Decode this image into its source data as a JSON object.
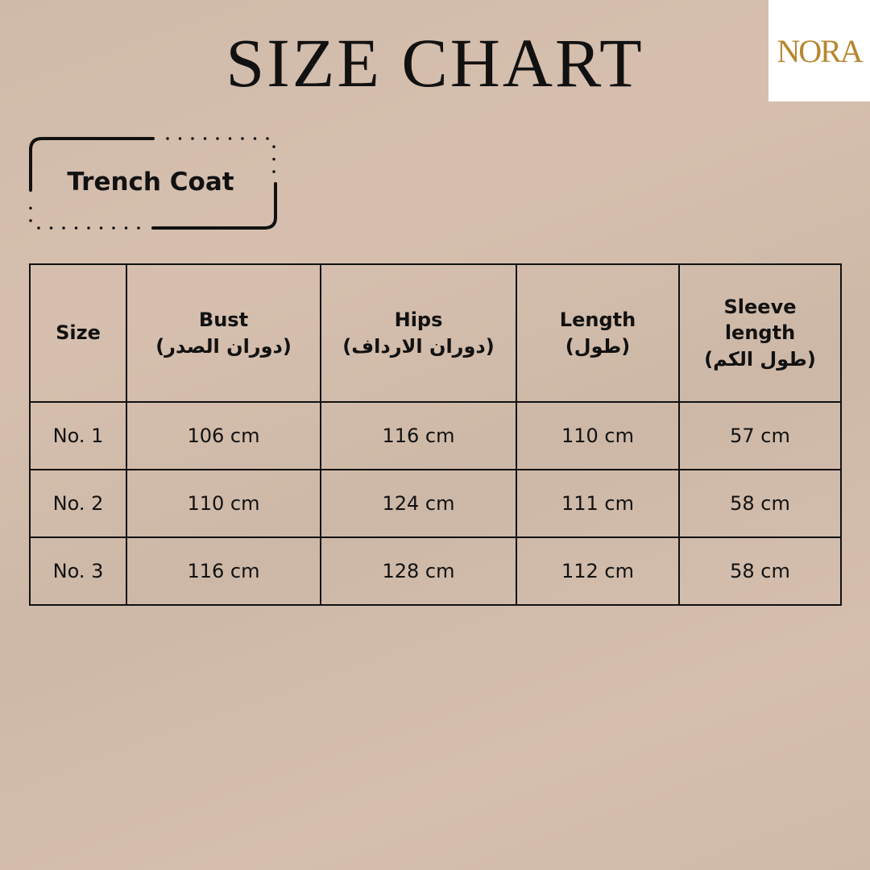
{
  "title": "SIZE CHART",
  "logo": "NORA",
  "product": "Trench Coat",
  "table": {
    "headers": [
      {
        "en": "Size",
        "ar": ""
      },
      {
        "en": "Bust",
        "ar": "(دوران الصدر)"
      },
      {
        "en": "Hips",
        "ar": "(دوران الارداف)"
      },
      {
        "en": "Length",
        "ar": "(طول)"
      },
      {
        "en": "Sleeve length",
        "ar": "(طول الكم)"
      }
    ],
    "rows": [
      [
        "No. 1",
        "106 cm",
        "116 cm",
        "110 cm",
        "57 cm"
      ],
      [
        "No. 2",
        "110 cm",
        "124 cm",
        "111 cm",
        "58 cm"
      ],
      [
        "No. 3",
        "116 cm",
        "128 cm",
        "112 cm",
        "58 cm"
      ]
    ]
  }
}
